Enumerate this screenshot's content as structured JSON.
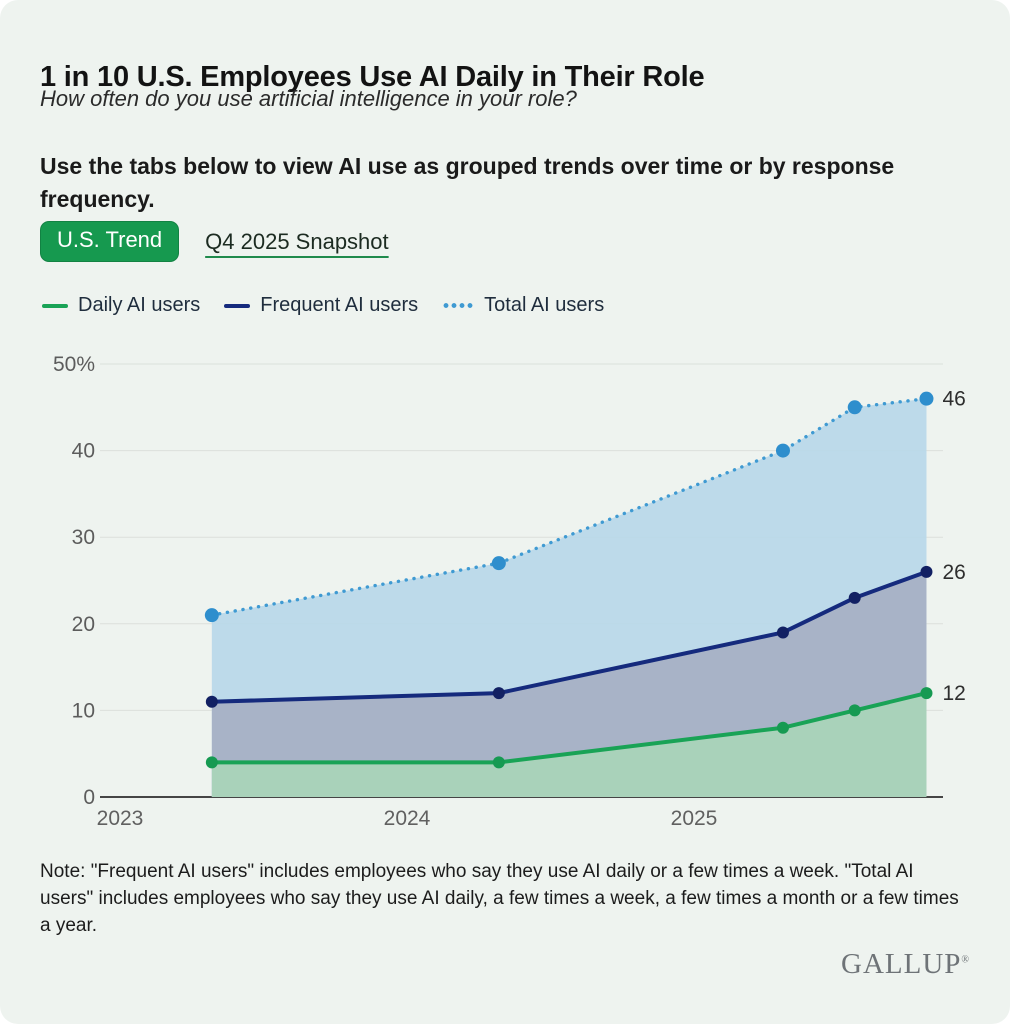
{
  "colors": {
    "background": "#eef3ef",
    "tab_active_bg": "#16994f",
    "tab_active_text": "#ffffff",
    "gridline": "#dbe0db",
    "axis": "#454545",
    "tick_label": "#5c5c5c",
    "value_label": "#2e2e2e"
  },
  "header": {
    "title": "1 in 10 U.S. Employees Use AI Daily in Their Role",
    "subtitle": "How often do you use artificial intelligence in your role?",
    "instruction": "Use the tabs below to view AI use as grouped trends over time or by response frequency."
  },
  "tabs": [
    {
      "label": "U.S. Trend",
      "active": true
    },
    {
      "label": "Q4 2025 Snapshot",
      "active": false
    }
  ],
  "legend": [
    {
      "label": "Daily AI users",
      "color": "#19a356",
      "style": "solid"
    },
    {
      "label": "Frequent AI users",
      "color": "#152a7d",
      "style": "solid"
    },
    {
      "label": "Total AI users",
      "color": "#3f9ad2",
      "style": "dotted"
    }
  ],
  "chart_data": {
    "type": "area",
    "x": [
      2023.32,
      2024.32,
      2025.31,
      2025.56,
      2025.81
    ],
    "x_tick_values": [
      2023,
      2024,
      2025
    ],
    "x_tick_labels": [
      "2023",
      "2024",
      "2025"
    ],
    "y_tick_values": [
      0,
      10,
      20,
      30,
      40,
      50
    ],
    "y_tick_labels": [
      "0",
      "10",
      "20",
      "30",
      "40",
      "50%"
    ],
    "ylim": [
      0,
      50
    ],
    "grid": true,
    "legend_position": "top",
    "series": [
      {
        "name": "Total AI users",
        "values": [
          21,
          27,
          40,
          45,
          46
        ],
        "line": "dotted",
        "color": "#3f9ad2",
        "marker_color": "#2e8ecd",
        "fill": "#b9d8e9",
        "end_label": "46"
      },
      {
        "name": "Frequent AI users",
        "values": [
          11,
          12,
          19,
          23,
          26
        ],
        "line": "solid",
        "color": "#152a7d",
        "marker_color": "#122063",
        "fill": "#a7b1c5",
        "end_label": "26"
      },
      {
        "name": "Daily AI users",
        "values": [
          4,
          4,
          8,
          10,
          12
        ],
        "line": "solid",
        "color": "#19a356",
        "marker_color": "#169a52",
        "fill": "#a9d4b9",
        "end_label": "12"
      }
    ]
  },
  "note": "Note: \"Frequent AI users\" includes employees who say they use AI daily or a few times a week. \"Total AI users\" includes employees who say they use AI daily, a few times a week, a few times a month or a few times a year.",
  "brand": {
    "logo": "GALLUP",
    "mark": "®"
  }
}
